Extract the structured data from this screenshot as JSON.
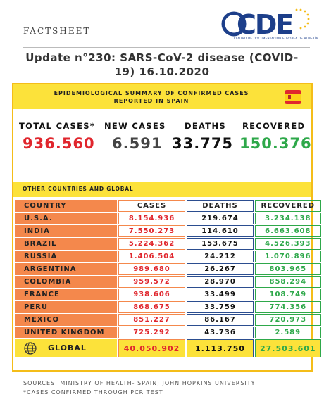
{
  "header": {
    "factsheet": "FACTSHEET",
    "logo_text": "CDE",
    "logo_subtitle": "CENTRO DE DOCUMENTACIÓN EUROPEA DE ALMERÍA"
  },
  "title": {
    "line1": "Update n°230: SARS-CoV-2 disease (COVID-",
    "line2": "19) 16.10.2020"
  },
  "summary": {
    "banner_line1": "EPIDEMIOLOGICAL SUMMARY OF CONFIRMED CASES",
    "banner_line2": "REPORTED IN SPAIN",
    "flag_icon": "spain-flag-icon",
    "total_cases_label": "TOTAL CASES*",
    "total_cases_value": "936.560",
    "new_cases_label": "NEW CASES",
    "new_cases_value": "6.591",
    "deaths_label": "DEATHS",
    "deaths_value": "33.775",
    "recovered_label": "RECOVERED",
    "recovered_value": "150.376"
  },
  "other": {
    "title": "OTHER COUNTRIES AND GLOBAL",
    "headers": [
      "COUNTRY",
      "CASES",
      "DEATHS",
      "RECOVERED"
    ],
    "rows": [
      {
        "country": "U.S.A.",
        "cases": "8.154.936",
        "deaths": "219.674",
        "recovered": "3.234.138"
      },
      {
        "country": "INDIA",
        "cases": "7.550.273",
        "deaths": "114.610",
        "recovered": "6.663.608"
      },
      {
        "country": "BRAZIL",
        "cases": "5.224.362",
        "deaths": "153.675",
        "recovered": "4.526.393"
      },
      {
        "country": "RUSSIA",
        "cases": "1.406.504",
        "deaths": "24.212",
        "recovered": "1.070.896"
      },
      {
        "country": "ARGENTINA",
        "cases": "989.680",
        "deaths": "26.267",
        "recovered": "803.965"
      },
      {
        "country": "COLOMBIA",
        "cases": "959.572",
        "deaths": "28.970",
        "recovered": "858.294"
      },
      {
        "country": "FRANCE",
        "cases": "938.606",
        "deaths": "33.499",
        "recovered": "108.749"
      },
      {
        "country": "PERU",
        "cases": "868.675",
        "deaths": "33.759",
        "recovered": "774.356"
      },
      {
        "country": "MEXICO",
        "cases": "851.227",
        "deaths": "86.167",
        "recovered": "720.973"
      },
      {
        "country": "UNITED KINGDOM",
        "cases": "725.292",
        "deaths": "43.736",
        "recovered": "2.589"
      }
    ],
    "global": {
      "label": "GLOBAL",
      "cases": "40.050.902",
      "deaths": "1.113.750",
      "recovered": "27.503.601",
      "icon": "globe-icon"
    }
  },
  "footer": {
    "sources": "SOURCES: MINISTRY OF HEALTH- SPAIN; JOHN HOPKINS UNIVERSITY",
    "note": "*CASES CONFIRMED THROUGH PCR TEST"
  },
  "colors": {
    "yellow": "#fce23a",
    "orange": "#f4884c",
    "red": "#e0262d",
    "green": "#2ea84a",
    "blue": "#1d3f8a"
  }
}
